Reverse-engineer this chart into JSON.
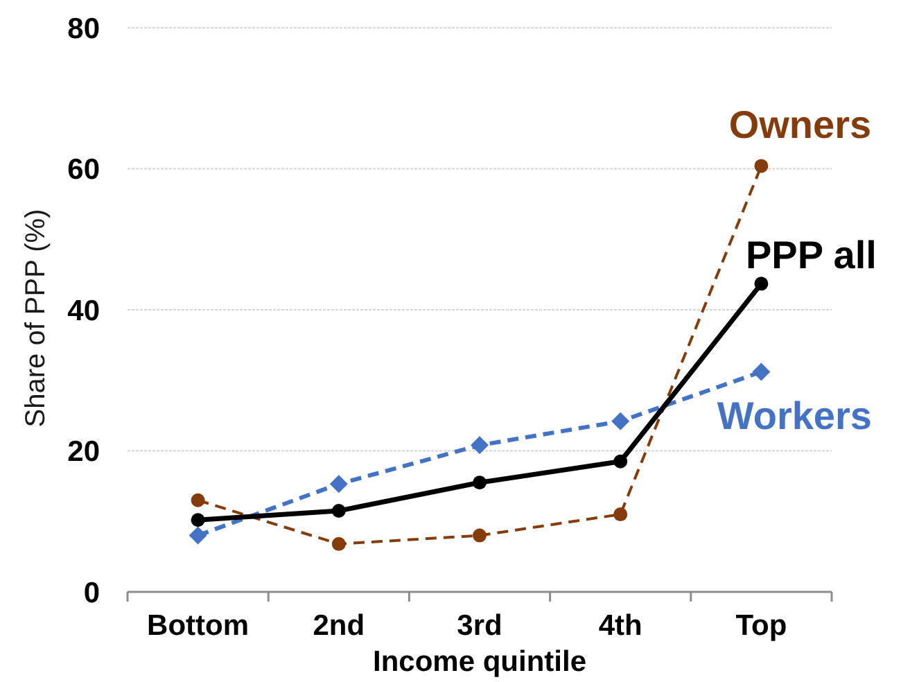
{
  "chart_data": {
    "type": "line",
    "xlabel": "Income quintile",
    "ylabel": "Share of PPP (%)",
    "categories": [
      "Bottom",
      "2nd",
      "3rd",
      "4th",
      "Top"
    ],
    "series": [
      {
        "name": "Owners",
        "color": "#843c0c",
        "values": [
          13.0,
          6.8,
          8.0,
          11.0,
          60.4
        ],
        "line_style": "dashed",
        "marker": "circle"
      },
      {
        "name": "Workers",
        "color": "#4472c4",
        "values": [
          8.0,
          15.3,
          20.8,
          24.2,
          31.2
        ],
        "line_style": "dashed",
        "marker": "diamond"
      },
      {
        "name": "PPP all",
        "color": "#000000",
        "values": [
          10.2,
          11.5,
          15.5,
          18.5,
          43.7
        ],
        "line_style": "solid",
        "marker": "circle"
      }
    ],
    "ylim": [
      0,
      80
    ],
    "yticks": [
      0,
      20,
      40,
      60,
      80
    ],
    "grid": "y",
    "legend": false
  }
}
